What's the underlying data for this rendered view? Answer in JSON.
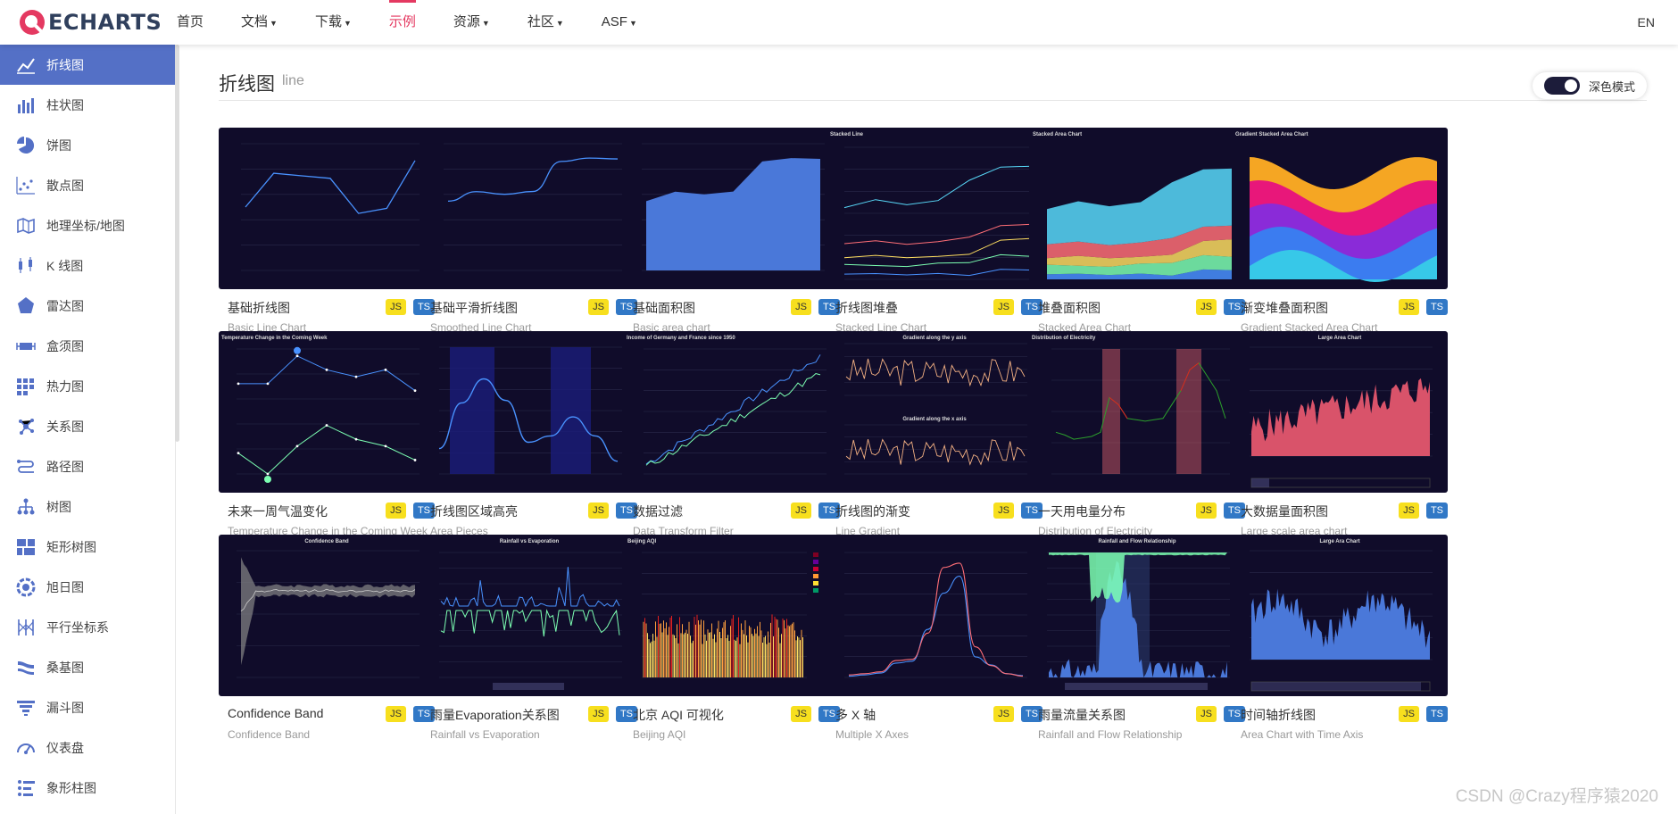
{
  "brand": {
    "logo_text": "ECHARTS",
    "accent": "#e43961"
  },
  "nav": {
    "items": [
      {
        "label": "首页",
        "dropdown": false,
        "active": false
      },
      {
        "label": "文档",
        "dropdown": true,
        "active": false
      },
      {
        "label": "下载",
        "dropdown": true,
        "active": false
      },
      {
        "label": "示例",
        "dropdown": false,
        "active": true
      },
      {
        "label": "资源",
        "dropdown": true,
        "active": false
      },
      {
        "label": "社区",
        "dropdown": true,
        "active": false
      },
      {
        "label": "ASF",
        "dropdown": true,
        "active": false
      }
    ],
    "lang": "EN"
  },
  "sidebar": {
    "items": [
      {
        "label": "折线图",
        "icon": "line-chart-icon",
        "active": true
      },
      {
        "label": "柱状图",
        "icon": "bar-chart-icon"
      },
      {
        "label": "饼图",
        "icon": "pie-chart-icon"
      },
      {
        "label": "散点图",
        "icon": "scatter-chart-icon"
      },
      {
        "label": "地理坐标/地图",
        "icon": "map-icon"
      },
      {
        "label": "K 线图",
        "icon": "candlestick-icon"
      },
      {
        "label": "雷达图",
        "icon": "radar-icon"
      },
      {
        "label": "盒须图",
        "icon": "boxplot-icon"
      },
      {
        "label": "热力图",
        "icon": "heatmap-icon"
      },
      {
        "label": "关系图",
        "icon": "graph-icon"
      },
      {
        "label": "路径图",
        "icon": "lines-icon"
      },
      {
        "label": "树图",
        "icon": "tree-icon"
      },
      {
        "label": "矩形树图",
        "icon": "treemap-icon"
      },
      {
        "label": "旭日图",
        "icon": "sunburst-icon"
      },
      {
        "label": "平行坐标系",
        "icon": "parallel-icon"
      },
      {
        "label": "桑基图",
        "icon": "sankey-icon"
      },
      {
        "label": "漏斗图",
        "icon": "funnel-icon"
      },
      {
        "label": "仪表盘",
        "icon": "gauge-icon"
      },
      {
        "label": "象形柱图",
        "icon": "pictorial-bar-icon"
      }
    ]
  },
  "page": {
    "title": "折线图",
    "subtitle": "line",
    "dark_mode_label": "深色模式",
    "dark_mode_on": true
  },
  "badges": {
    "js": "JS",
    "ts": "TS"
  },
  "examples": [
    {
      "title": "基础折线图",
      "subtitle": "Basic Line Chart",
      "kind": "line"
    },
    {
      "title": "基础平滑折线图",
      "subtitle": "Smoothed Line Chart",
      "kind": "smooth"
    },
    {
      "title": "基础面积图",
      "subtitle": "Basic area chart",
      "kind": "area"
    },
    {
      "title": "折线图堆叠",
      "subtitle": "Stacked Line Chart",
      "kind": "stackline",
      "thumb_title": "Stacked Line"
    },
    {
      "title": "堆叠面积图",
      "subtitle": "Stacked Area Chart",
      "kind": "stackarea",
      "thumb_title": "Stacked Area Chart"
    },
    {
      "title": "渐变堆叠面积图",
      "subtitle": "Gradient Stacked Area Chart",
      "kind": "gradient",
      "thumb_title": "Gradient Stacked Area Chart"
    },
    {
      "title": "未来一周气温变化",
      "subtitle": "Temperature Change in the Coming Week",
      "kind": "temp",
      "thumb_title": "Temperature Change in the Coming Week"
    },
    {
      "title": "折线图区域高亮",
      "subtitle": "Area Pieces",
      "kind": "pieces"
    },
    {
      "title": "数据过滤",
      "subtitle": "Data Transform Filter",
      "kind": "filter",
      "thumb_title": "Income of Germany and France since 1950"
    },
    {
      "title": "折线图的渐变",
      "subtitle": "Line Gradient",
      "kind": "linegrad",
      "thumb_title": "Gradient along the y axis",
      "thumb_title2": "Gradient along the x axis"
    },
    {
      "title": "一天用电量分布",
      "subtitle": "Distribution of Electricity",
      "kind": "electric",
      "thumb_title": "Distribution of Electricity"
    },
    {
      "title": "大数据量面积图",
      "subtitle": "Large scale area chart",
      "kind": "large",
      "thumb_title": "Large Area Chart"
    },
    {
      "title": "Confidence Band",
      "subtitle": "Confidence Band",
      "kind": "confidence",
      "thumb_title": "Confidence Band"
    },
    {
      "title": "雨量Evaporation关系图",
      "subtitle": "Rainfall vs Evaporation",
      "kind": "rainfall",
      "thumb_title": "Rainfall vs Evaporation"
    },
    {
      "title": "北京 AQI 可视化",
      "subtitle": "Beijing AQI",
      "kind": "aqi",
      "thumb_title": "Beijing AQI"
    },
    {
      "title": "多 X 轴",
      "subtitle": "Multiple X Axes",
      "kind": "multix"
    },
    {
      "title": "雨量流量关系图",
      "subtitle": "Rainfall and Flow Relationship",
      "kind": "flow",
      "thumb_title": "Rainfall and Flow Relationship"
    },
    {
      "title": "时间轴折线图",
      "subtitle": "Area Chart with Time Axis",
      "kind": "timeaxis",
      "thumb_title": "Large Ara Chart"
    }
  ],
  "watermark": "CSDN @Crazy程序猿2020"
}
